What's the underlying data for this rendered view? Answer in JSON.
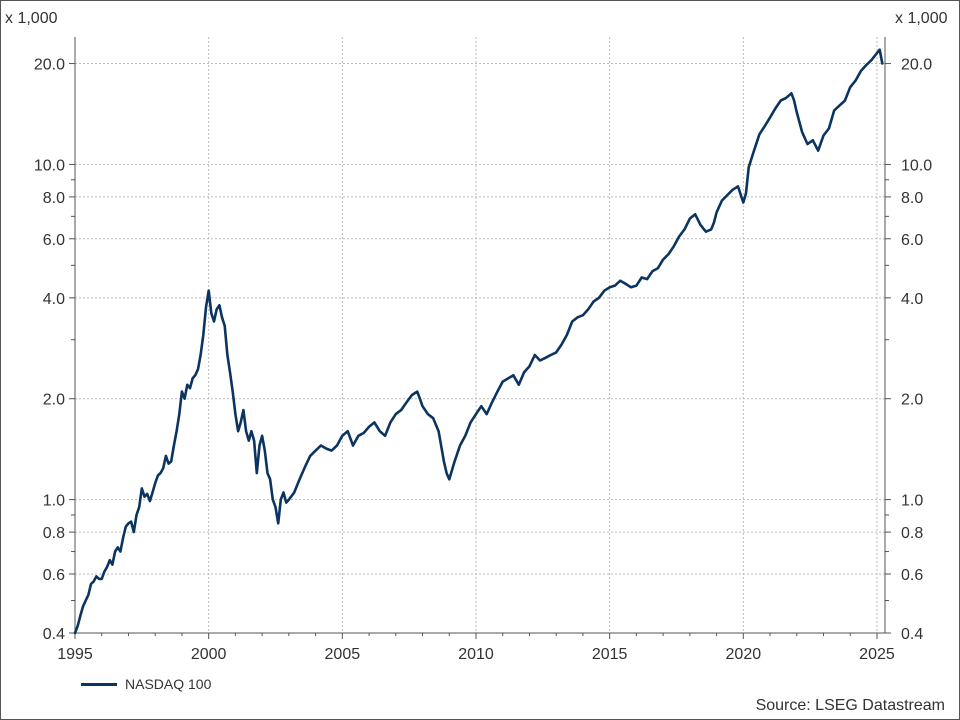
{
  "chart_data": {
    "type": "line",
    "unit_label_left": "x 1,000",
    "unit_label_right": "x 1,000",
    "y_scale": "log",
    "ylim": [
      0.4,
      24
    ],
    "xlim": [
      1995,
      2025.3
    ],
    "y_ticks": [
      0.4,
      0.6,
      0.8,
      1.0,
      2.0,
      4.0,
      6.0,
      8.0,
      10.0,
      20.0
    ],
    "y_tick_labels": [
      "0.4",
      "0.6",
      "0.8",
      "1.0",
      "2.0",
      "4.0",
      "6.0",
      "8.0",
      "10.0",
      "20.0"
    ],
    "y_minor_ticks": [
      0.5,
      0.7,
      0.9,
      3,
      5,
      7,
      9
    ],
    "x_ticks": [
      1995,
      2000,
      2005,
      2010,
      2015,
      2020,
      2025
    ],
    "x_tick_labels": [
      "1995",
      "2000",
      "2005",
      "2010",
      "2015",
      "2020",
      "2025"
    ],
    "grid": true,
    "legend_position": "bottom-left",
    "source": "Source: LSEG Datastream",
    "series": [
      {
        "name": "NASDAQ 100",
        "color": "#0b3560",
        "x": [
          1995.0,
          1995.1,
          1995.2,
          1995.3,
          1995.4,
          1995.5,
          1995.6,
          1995.7,
          1995.8,
          1995.9,
          1996.0,
          1996.1,
          1996.2,
          1996.3,
          1996.4,
          1996.5,
          1996.6,
          1996.7,
          1996.8,
          1996.9,
          1997.0,
          1997.1,
          1997.2,
          1997.3,
          1997.4,
          1997.5,
          1997.6,
          1997.7,
          1997.8,
          1997.9,
          1998.0,
          1998.1,
          1998.2,
          1998.3,
          1998.4,
          1998.5,
          1998.6,
          1998.7,
          1998.8,
          1998.9,
          1999.0,
          1999.1,
          1999.2,
          1999.3,
          1999.4,
          1999.5,
          1999.6,
          1999.7,
          1999.8,
          1999.9,
          2000.0,
          2000.1,
          2000.2,
          2000.3,
          2000.4,
          2000.5,
          2000.6,
          2000.7,
          2000.8,
          2000.9,
          2001.0,
          2001.1,
          2001.2,
          2001.3,
          2001.4,
          2001.5,
          2001.6,
          2001.7,
          2001.8,
          2001.9,
          2002.0,
          2002.1,
          2002.2,
          2002.3,
          2002.4,
          2002.5,
          2002.6,
          2002.7,
          2002.8,
          2002.9,
          2003.0,
          2003.2,
          2003.4,
          2003.6,
          2003.8,
          2004.0,
          2004.2,
          2004.4,
          2004.6,
          2004.8,
          2005.0,
          2005.2,
          2005.4,
          2005.6,
          2005.8,
          2006.0,
          2006.2,
          2006.4,
          2006.6,
          2006.8,
          2007.0,
          2007.2,
          2007.4,
          2007.6,
          2007.8,
          2007.9,
          2008.0,
          2008.2,
          2008.4,
          2008.6,
          2008.8,
          2008.9,
          2009.0,
          2009.2,
          2009.4,
          2009.6,
          2009.8,
          2010.0,
          2010.2,
          2010.4,
          2010.6,
          2010.8,
          2011.0,
          2011.2,
          2011.4,
          2011.6,
          2011.8,
          2012.0,
          2012.2,
          2012.4,
          2012.6,
          2012.8,
          2013.0,
          2013.2,
          2013.4,
          2013.6,
          2013.8,
          2014.0,
          2014.2,
          2014.4,
          2014.6,
          2014.8,
          2015.0,
          2015.2,
          2015.4,
          2015.6,
          2015.8,
          2016.0,
          2016.2,
          2016.4,
          2016.6,
          2016.8,
          2017.0,
          2017.2,
          2017.4,
          2017.6,
          2017.8,
          2018.0,
          2018.2,
          2018.4,
          2018.6,
          2018.8,
          2018.9,
          2019.0,
          2019.2,
          2019.4,
          2019.6,
          2019.8,
          2020.0,
          2020.1,
          2020.2,
          2020.4,
          2020.6,
          2020.8,
          2021.0,
          2021.2,
          2021.4,
          2021.6,
          2021.8,
          2021.9,
          2022.0,
          2022.2,
          2022.4,
          2022.6,
          2022.8,
          2023.0,
          2023.2,
          2023.4,
          2023.6,
          2023.8,
          2024.0,
          2024.2,
          2024.4,
          2024.6,
          2024.8,
          2025.0,
          2025.1,
          2025.2
        ],
        "values": [
          0.4,
          0.42,
          0.45,
          0.48,
          0.5,
          0.52,
          0.56,
          0.57,
          0.59,
          0.58,
          0.58,
          0.61,
          0.63,
          0.66,
          0.64,
          0.7,
          0.72,
          0.7,
          0.77,
          0.83,
          0.85,
          0.86,
          0.8,
          0.9,
          0.95,
          1.08,
          1.02,
          1.04,
          0.99,
          1.05,
          1.12,
          1.18,
          1.2,
          1.24,
          1.35,
          1.28,
          1.3,
          1.45,
          1.6,
          1.8,
          2.1,
          2.0,
          2.2,
          2.15,
          2.3,
          2.35,
          2.45,
          2.7,
          3.1,
          3.75,
          4.2,
          3.6,
          3.4,
          3.7,
          3.8,
          3.5,
          3.3,
          2.7,
          2.4,
          2.1,
          1.8,
          1.6,
          1.7,
          1.85,
          1.6,
          1.5,
          1.6,
          1.5,
          1.2,
          1.45,
          1.55,
          1.4,
          1.2,
          1.15,
          1.0,
          0.95,
          0.85,
          1.0,
          1.05,
          0.98,
          1.0,
          1.05,
          1.15,
          1.25,
          1.35,
          1.4,
          1.45,
          1.42,
          1.4,
          1.45,
          1.55,
          1.6,
          1.45,
          1.55,
          1.58,
          1.65,
          1.7,
          1.6,
          1.55,
          1.7,
          1.8,
          1.85,
          1.95,
          2.05,
          2.1,
          2.0,
          1.9,
          1.8,
          1.75,
          1.6,
          1.3,
          1.2,
          1.15,
          1.3,
          1.45,
          1.55,
          1.7,
          1.8,
          1.9,
          1.8,
          1.95,
          2.1,
          2.25,
          2.3,
          2.35,
          2.2,
          2.4,
          2.5,
          2.7,
          2.6,
          2.65,
          2.7,
          2.75,
          2.9,
          3.1,
          3.4,
          3.5,
          3.55,
          3.7,
          3.9,
          4.0,
          4.2,
          4.3,
          4.35,
          4.5,
          4.4,
          4.3,
          4.35,
          4.6,
          4.55,
          4.8,
          4.9,
          5.2,
          5.4,
          5.7,
          6.1,
          6.4,
          6.9,
          7.1,
          6.6,
          6.3,
          6.4,
          6.7,
          7.2,
          7.8,
          8.1,
          8.4,
          8.6,
          7.7,
          8.2,
          9.8,
          11.0,
          12.3,
          13.0,
          13.8,
          14.7,
          15.5,
          15.8,
          16.3,
          15.5,
          14.3,
          12.5,
          11.5,
          11.8,
          11.0,
          12.2,
          12.8,
          14.5,
          15.0,
          15.5,
          17.0,
          17.8,
          19.0,
          19.8,
          20.5,
          21.5,
          22.0,
          20.0
        ]
      }
    ]
  }
}
